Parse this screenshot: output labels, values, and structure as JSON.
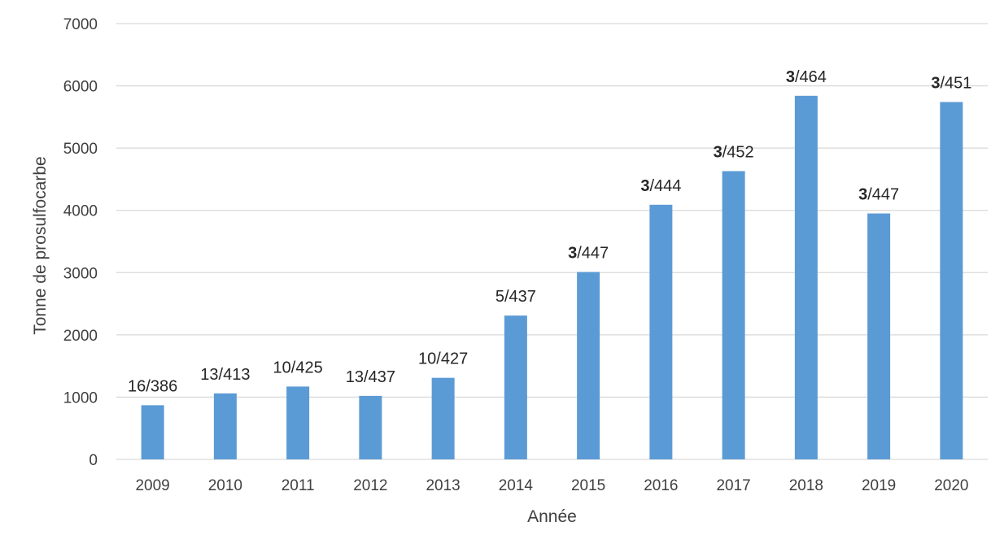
{
  "chart_data": {
    "type": "bar",
    "title": "",
    "xlabel": "Année",
    "ylabel": "Tonne de prosulfocarbe",
    "ylim": [
      0,
      7000
    ],
    "ytick_step": 1000,
    "grid": true,
    "legend": "none",
    "colors": {
      "bar": "#5b9bd5",
      "grid": "#d9d9d9",
      "text": "#404040"
    },
    "categories": [
      "2009",
      "2010",
      "2011",
      "2012",
      "2013",
      "2014",
      "2015",
      "2016",
      "2017",
      "2018",
      "2019",
      "2020"
    ],
    "values": [
      870,
      1060,
      1170,
      1020,
      1310,
      2310,
      3010,
      4090,
      4630,
      5840,
      3950,
      5740
    ],
    "data_labels": [
      {
        "bold": "",
        "text": "16/386"
      },
      {
        "bold": "",
        "text": "13/413"
      },
      {
        "bold": "",
        "text": "10/425"
      },
      {
        "bold": "",
        "text": "13/437"
      },
      {
        "bold": "",
        "text": "10/427"
      },
      {
        "bold": "",
        "text": "5/437"
      },
      {
        "bold": "3",
        "text": "/447"
      },
      {
        "bold": "3",
        "text": "/444"
      },
      {
        "bold": "3",
        "text": "/452"
      },
      {
        "bold": "3",
        "text": "/464"
      },
      {
        "bold": "3",
        "text": "/447"
      },
      {
        "bold": "3",
        "text": "/451"
      }
    ]
  }
}
